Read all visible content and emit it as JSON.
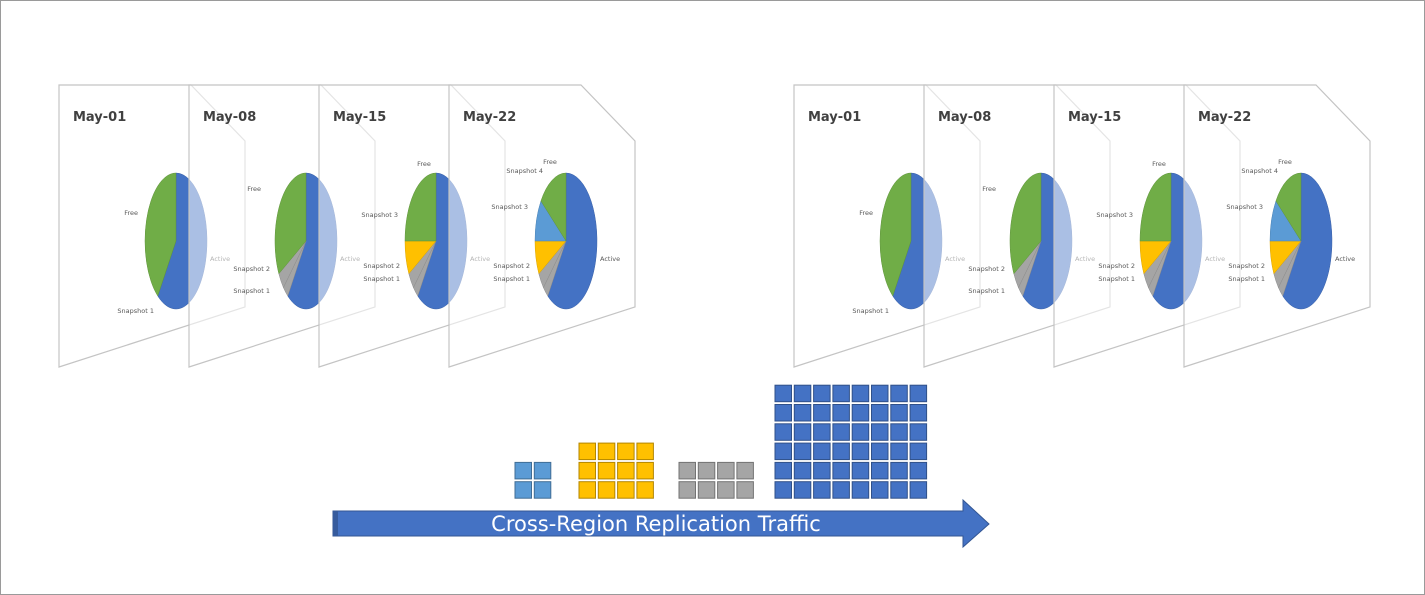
{
  "colors": {
    "active": "#4472c4",
    "free": "#70ad47",
    "snapshot1": "#a5a5a5",
    "snapshot2": "#a5a5a5",
    "snapshot3": "#ffc000",
    "snapshot4": "#5b9bd5",
    "arrow": "#4472c4",
    "frame_border": "#c4c4c4"
  },
  "snapshot_sets": [
    {
      "frames": [
        {
          "date": "May-01",
          "slices": [
            {
              "key": "active",
              "label": "Active",
              "fraction": 0.6
            },
            {
              "key": "free",
              "label": "Free",
              "fraction": 0.4
            },
            {
              "key": "snapshot1",
              "label": "Snapshot 1",
              "fraction": 0
            }
          ]
        },
        {
          "date": "May-08",
          "slices": [
            {
              "key": "active",
              "label": "Active",
              "fraction": 0.6
            },
            {
              "key": "snapshot1",
              "label": "Snapshot 1",
              "fraction": 0.03
            },
            {
              "key": "snapshot2",
              "label": "Snapshot 2",
              "fraction": 0.04
            },
            {
              "key": "free",
              "label": "Free",
              "fraction": 0.33
            }
          ]
        },
        {
          "date": "May-15",
          "slices": [
            {
              "key": "active",
              "label": "Active",
              "fraction": 0.6
            },
            {
              "key": "snapshot1",
              "label": "Snapshot 1",
              "fraction": 0.03
            },
            {
              "key": "snapshot2",
              "label": "Snapshot 2",
              "fraction": 0.04
            },
            {
              "key": "snapshot3",
              "label": "Snapshot 3",
              "fraction": 0.08
            },
            {
              "key": "free",
              "label": "Free",
              "fraction": 0.25
            }
          ]
        },
        {
          "date": "May-22",
          "slices": [
            {
              "key": "active",
              "label": "Active",
              "fraction": 0.6
            },
            {
              "key": "snapshot1",
              "label": "Snapshot 1",
              "fraction": 0.03
            },
            {
              "key": "snapshot2",
              "label": "Snapshot 2",
              "fraction": 0.04
            },
            {
              "key": "snapshot3",
              "label": "Snapshot 3",
              "fraction": 0.08
            },
            {
              "key": "snapshot4",
              "label": "Snapshot 4",
              "fraction": 0.1
            },
            {
              "key": "free",
              "label": "Free",
              "fraction": 0.15
            }
          ]
        }
      ]
    },
    {
      "frames": [
        {
          "date": "May-01",
          "slices": [
            {
              "key": "active",
              "label": "Active",
              "fraction": 0.6
            },
            {
              "key": "free",
              "label": "Free",
              "fraction": 0.4
            },
            {
              "key": "snapshot1",
              "label": "Snapshot 1",
              "fraction": 0
            }
          ]
        },
        {
          "date": "May-08",
          "slices": [
            {
              "key": "active",
              "label": "Active",
              "fraction": 0.6
            },
            {
              "key": "snapshot1",
              "label": "Snapshot 1",
              "fraction": 0.03
            },
            {
              "key": "snapshot2",
              "label": "Snapshot 2",
              "fraction": 0.04
            },
            {
              "key": "free",
              "label": "Free",
              "fraction": 0.33
            }
          ]
        },
        {
          "date": "May-15",
          "slices": [
            {
              "key": "active",
              "label": "Active",
              "fraction": 0.6
            },
            {
              "key": "snapshot1",
              "label": "Snapshot 1",
              "fraction": 0.03
            },
            {
              "key": "snapshot2",
              "label": "Snapshot 2",
              "fraction": 0.04
            },
            {
              "key": "snapshot3",
              "label": "Snapshot 3",
              "fraction": 0.08
            },
            {
              "key": "free",
              "label": "Free",
              "fraction": 0.25
            }
          ]
        },
        {
          "date": "May-22",
          "slices": [
            {
              "key": "active",
              "label": "Active",
              "fraction": 0.6
            },
            {
              "key": "snapshot1",
              "label": "Snapshot 1",
              "fraction": 0.03
            },
            {
              "key": "snapshot2",
              "label": "Snapshot 2",
              "fraction": 0.04
            },
            {
              "key": "snapshot3",
              "label": "Snapshot 3",
              "fraction": 0.08
            },
            {
              "key": "snapshot4",
              "label": "Snapshot 4",
              "fraction": 0.1
            },
            {
              "key": "free",
              "label": "Free",
              "fraction": 0.15
            }
          ]
        }
      ]
    }
  ],
  "traffic": {
    "label": "Cross-Region Replication Traffic",
    "groups": [
      {
        "key": "snapshot4",
        "blocks": 4
      },
      {
        "key": "snapshot3",
        "blocks": 12
      },
      {
        "key": "snapshot1",
        "blocks": 8
      },
      {
        "key": "active",
        "blocks": 48
      }
    ]
  }
}
